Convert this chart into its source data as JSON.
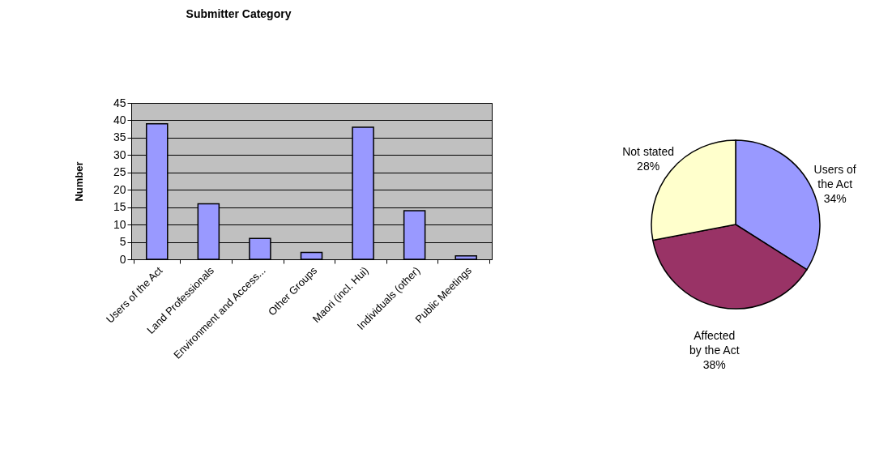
{
  "chart_data": [
    {
      "type": "bar",
      "title": "Submitter Category",
      "ylabel": "Number",
      "categories": [
        "Users of the Act",
        "Land Professionals",
        "Environment and Access...",
        "Other Groups",
        "Maori (incl. Hui)",
        "Individuals (other)",
        "Public Meetings"
      ],
      "values": [
        39,
        16,
        6,
        2,
        38,
        14,
        1
      ],
      "color": "#9999ff",
      "ylim": [
        0,
        45
      ],
      "yticks": [
        0,
        5,
        10,
        15,
        20,
        25,
        30,
        35,
        40,
        45
      ],
      "grid": "y"
    },
    {
      "type": "pie",
      "categories": [
        "Users of the Act",
        "Affected by the Act",
        "Not stated"
      ],
      "values": [
        34,
        38,
        28
      ],
      "value_labels": [
        "34%",
        "38%",
        "28%"
      ],
      "colors": [
        "#9999ff",
        "#993366",
        "#ffffcc"
      ]
    }
  ]
}
